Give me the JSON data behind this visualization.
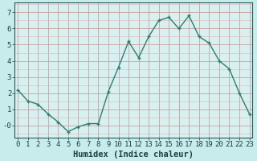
{
  "x": [
    0,
    1,
    2,
    3,
    4,
    5,
    6,
    7,
    8,
    9,
    10,
    11,
    12,
    13,
    14,
    15,
    16,
    17,
    18,
    19,
    20,
    21,
    22,
    23
  ],
  "y": [
    2.2,
    1.5,
    1.3,
    0.7,
    0.2,
    -0.4,
    -0.1,
    0.1,
    0.1,
    2.1,
    3.6,
    5.2,
    4.2,
    5.5,
    6.5,
    6.7,
    6.0,
    6.8,
    5.5,
    5.1,
    4.0,
    3.5,
    2.0,
    0.7
  ],
  "line_color": "#2e7d6e",
  "marker": "+",
  "marker_size": 3.5,
  "bg_color": "#c8ecec",
  "grid_minor_color": "#dbbaba",
  "grid_major_color": "#c8a0a0",
  "xlabel": "Humidex (Indice chaleur)",
  "xlabel_fontsize": 7.5,
  "yticks": [
    0,
    1,
    2,
    3,
    4,
    5,
    6,
    7
  ],
  "ytick_labels": [
    "-0",
    "1",
    "2",
    "3",
    "4",
    "5",
    "6",
    "7"
  ],
  "xlim": [
    -0.3,
    23.3
  ],
  "ylim": [
    -0.75,
    7.6
  ],
  "tick_fontsize": 6.5,
  "linewidth": 1.0,
  "plot_area_color": "#d8f0f0"
}
